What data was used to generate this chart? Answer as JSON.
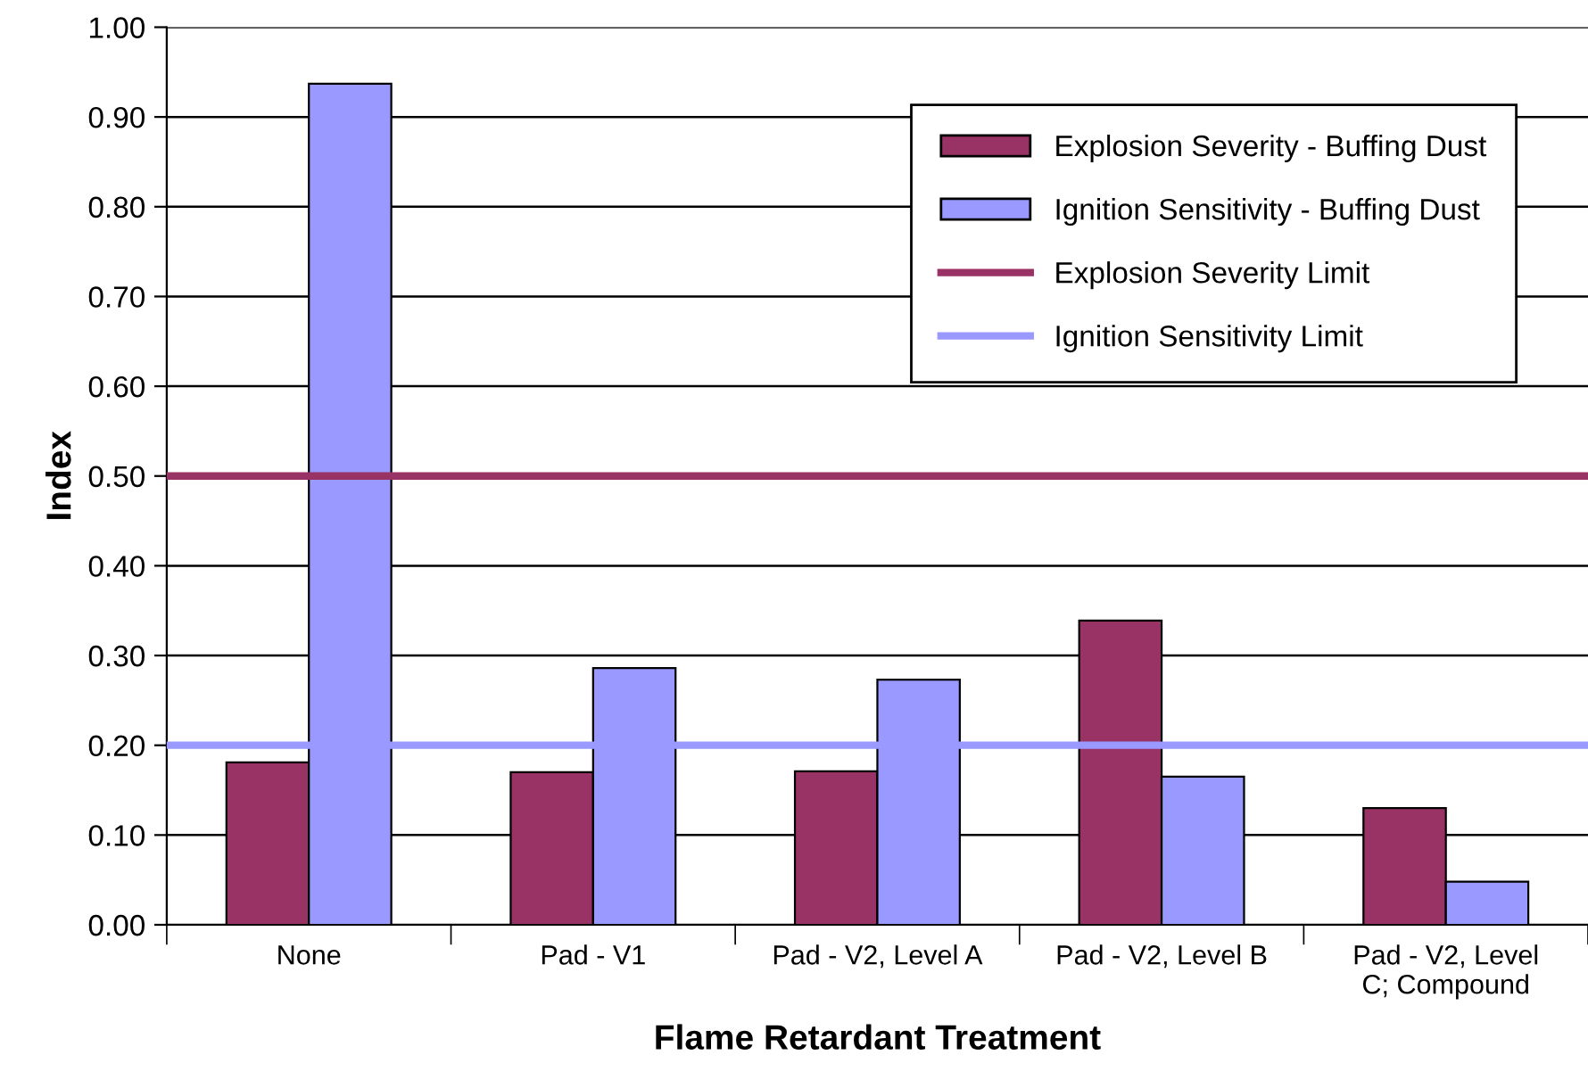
{
  "chart_data": {
    "type": "bar",
    "xlabel": "Flame Retardant Treatment",
    "ylabel": "Index",
    "categories": [
      "None",
      "Pad - V1",
      "Pad - V2, Level A",
      "Pad - V2, Level B",
      "Pad - V2, Level\nC; Compound"
    ],
    "series": [
      {
        "name": "Explosion Severity - Buffing Dust",
        "color": "#993366",
        "values": [
          0.181,
          0.17,
          0.171,
          0.339,
          0.13
        ]
      },
      {
        "name": "Ignition Sensitivity - Buffing Dust",
        "color": "#9999ff",
        "values": [
          0.937,
          0.286,
          0.273,
          0.165,
          0.048
        ]
      }
    ],
    "ref_lines": [
      {
        "axis": "y",
        "value": 0.5,
        "label": "Explosion Severity Limit",
        "color": "#993366",
        "line_style": "solid"
      },
      {
        "axis": "y",
        "value": 0.2,
        "label": "Ignition Sensitivity Limit",
        "color": "#9999ff",
        "line_style": "solid"
      }
    ],
    "ylim": [
      0,
      1.0
    ],
    "yticks": [
      {
        "value": 0,
        "label": "0.00"
      },
      {
        "value": 0.1,
        "label": "0.10"
      },
      {
        "value": 0.2,
        "label": "0.20"
      },
      {
        "value": 0.3,
        "label": "0.30"
      },
      {
        "value": 0.4,
        "label": "0.40"
      },
      {
        "value": 0.5,
        "label": "0.50"
      },
      {
        "value": 0.6,
        "label": "0.60"
      },
      {
        "value": 0.7,
        "label": "0.70"
      },
      {
        "value": 0.8,
        "label": "0.80"
      },
      {
        "value": 0.9,
        "label": "0.90"
      },
      {
        "value": 1.0,
        "label": "1.00"
      }
    ],
    "grid": "y",
    "legend": "top right"
  }
}
